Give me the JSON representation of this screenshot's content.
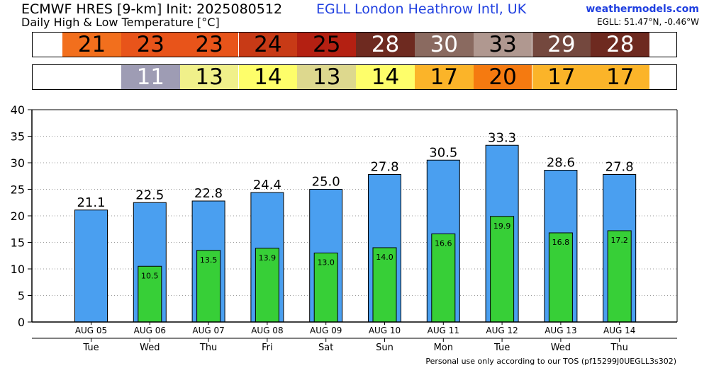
{
  "header": {
    "title": "ECMWF HRES [9-km] Init: 2025080512",
    "subtitle": "Daily High & Low Temperature [°C]",
    "station": "EGLL London Heathrow Intl,  UK",
    "site": "weathermodels.com",
    "coords": "EGLL: 51.47°N, -0.46°W"
  },
  "footer": "Personal use only according to our TOS (pf15299J0UEGLL3s302)",
  "strips": {
    "high": [
      {
        "value": "21",
        "bg": "#f26f1d",
        "fg": "#000000"
      },
      {
        "value": "23",
        "bg": "#e8541a",
        "fg": "#000000"
      },
      {
        "value": "23",
        "bg": "#e8541a",
        "fg": "#000000"
      },
      {
        "value": "24",
        "bg": "#c83a16",
        "fg": "#000000"
      },
      {
        "value": "25",
        "bg": "#b42012",
        "fg": "#000000"
      },
      {
        "value": "28",
        "bg": "#6e2a20",
        "fg": "#ffffff"
      },
      {
        "value": "30",
        "bg": "#8a6a60",
        "fg": "#ffffff"
      },
      {
        "value": "33",
        "bg": "#b09890",
        "fg": "#000000"
      },
      {
        "value": "29",
        "bg": "#74483e",
        "fg": "#ffffff"
      },
      {
        "value": "28",
        "bg": "#6e2a20",
        "fg": "#ffffff"
      }
    ],
    "low": [
      {
        "value": "11",
        "bg": "#9e9cb4",
        "fg": "#ffffff"
      },
      {
        "value": "13",
        "bg": "#f0f08a",
        "fg": "#000000"
      },
      {
        "value": "14",
        "bg": "#fefe6a",
        "fg": "#000000"
      },
      {
        "value": "13",
        "bg": "#ddd88e",
        "fg": "#000000"
      },
      {
        "value": "14",
        "bg": "#fefe6a",
        "fg": "#000000"
      },
      {
        "value": "17",
        "bg": "#fbb429",
        "fg": "#000000"
      },
      {
        "value": "20",
        "bg": "#f57a10",
        "fg": "#000000"
      },
      {
        "value": "17",
        "bg": "#fbb429",
        "fg": "#000000"
      },
      {
        "value": "17",
        "bg": "#fbb429",
        "fg": "#000000"
      }
    ]
  },
  "chart_data": {
    "type": "bar",
    "title": "Daily High & Low Temperature [°C]",
    "categories": [
      "AUG 05",
      "AUG 06",
      "AUG 07",
      "AUG 08",
      "AUG 09",
      "AUG 10",
      "AUG 11",
      "AUG 12",
      "AUG 13",
      "AUG 14"
    ],
    "days": [
      "Tue",
      "Wed",
      "Thu",
      "Fri",
      "Sat",
      "Sun",
      "Mon",
      "Tue",
      "Wed",
      "Thu"
    ],
    "series": [
      {
        "name": "High",
        "color": "#4a9ff0",
        "values": [
          21.1,
          22.5,
          22.8,
          24.4,
          25.0,
          27.8,
          30.5,
          33.3,
          28.6,
          27.8
        ],
        "labels": [
          "21.1",
          "22.5",
          "22.8",
          "24.4",
          "25.0",
          "27.8",
          "30.5",
          "33.3",
          "28.6",
          "27.8"
        ]
      },
      {
        "name": "Low",
        "color": "#37cf37",
        "values": [
          null,
          10.5,
          13.5,
          13.9,
          13.0,
          14.0,
          16.6,
          19.9,
          16.8,
          17.2
        ],
        "labels": [
          "",
          "10.5",
          "13.5",
          "13.9",
          "13.0",
          "14.0",
          "16.6",
          "19.9",
          "16.8",
          "17.2"
        ]
      }
    ],
    "yticks": [
      "0",
      "5",
      "10",
      "15",
      "20",
      "25",
      "30",
      "35",
      "40"
    ],
    "ylim": [
      0,
      40
    ],
    "grid": true
  }
}
